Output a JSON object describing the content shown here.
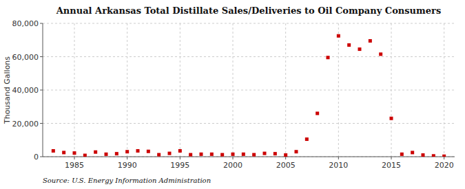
{
  "chart_data": {
    "type": "scatter",
    "title": "Annual Arkansas Total Distillate Sales/Deliveries to Oil Company Consumers",
    "ylabel": "Thousand Gallons",
    "source": "Source: U.S. Energy Information Administration",
    "x": [
      1983,
      1984,
      1985,
      1986,
      1987,
      1988,
      1989,
      1990,
      1991,
      1992,
      1993,
      1994,
      1995,
      1996,
      1997,
      1998,
      1999,
      2000,
      2001,
      2002,
      2003,
      2004,
      2005,
      2006,
      2007,
      2008,
      2009,
      2010,
      2011,
      2012,
      2013,
      2014,
      2015,
      2016,
      2017,
      2018,
      2019,
      2020
    ],
    "values": [
      3500,
      2500,
      2200,
      800,
      2800,
      1500,
      1800,
      3000,
      3500,
      3200,
      1200,
      2000,
      3500,
      1200,
      1500,
      1500,
      1200,
      1500,
      1500,
      1200,
      2000,
      1800,
      1000,
      3000,
      10500,
      26000,
      59500,
      72500,
      67000,
      64500,
      69500,
      61500,
      23000,
      1500,
      2500,
      1000,
      500,
      300
    ],
    "color": "#cc0000",
    "marker": "square",
    "xlim": [
      1982,
      2021
    ],
    "ylim": [
      0,
      80000
    ],
    "xticks": [
      1985,
      1990,
      1995,
      2000,
      2005,
      2010,
      2015,
      2020
    ],
    "yticks": [
      0,
      {
        "value": 20000,
        "label": "20,000"
      },
      {
        "value": 40000,
        "label": "40,000"
      },
      {
        "value": 60000,
        "label": "60,000"
      },
      {
        "value": 80000,
        "label": "80,000"
      }
    ],
    "grid": true
  }
}
